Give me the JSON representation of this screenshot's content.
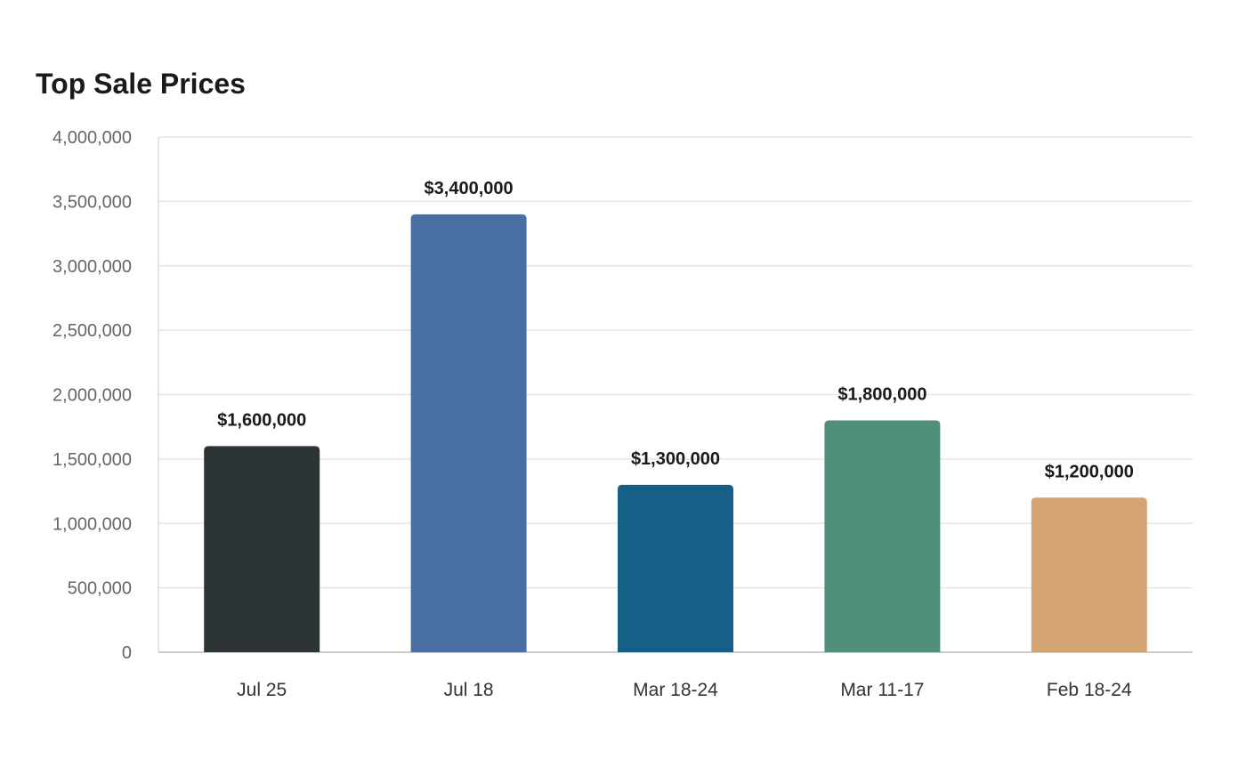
{
  "chart_data": {
    "type": "bar",
    "title": "Top Sale Prices",
    "categories": [
      "Jul 25",
      "Jul 18",
      "Mar 18-24",
      "Mar 11-17",
      "Feb 18-24"
    ],
    "values": [
      1600000,
      3400000,
      1300000,
      1800000,
      1200000
    ],
    "data_labels": [
      "$1,600,000",
      "$3,400,000",
      "$1,300,000",
      "$1,800,000",
      "$1,200,000"
    ],
    "bar_colors": [
      "#2d3436",
      "#4a6fa5",
      "#166088",
      "#4f8f7c",
      "#d4a373"
    ],
    "ylim": [
      0,
      4000000
    ],
    "yticks": [
      0,
      500000,
      1000000,
      1500000,
      2000000,
      2500000,
      3000000,
      3500000,
      4000000
    ],
    "ytick_labels": [
      "0",
      "500,000",
      "1,000,000",
      "1,500,000",
      "2,000,000",
      "2,500,000",
      "3,000,000",
      "3,500,000",
      "4,000,000"
    ],
    "grid": true,
    "legend": "none",
    "xlabel": "",
    "ylabel": ""
  }
}
